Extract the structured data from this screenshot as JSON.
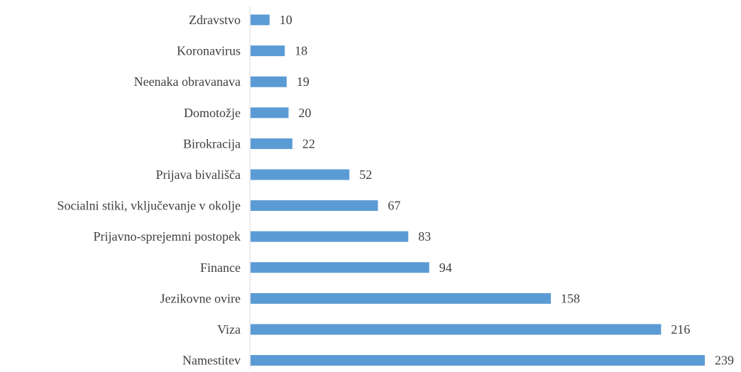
{
  "chart_data": {
    "type": "bar",
    "orientation": "horizontal",
    "title": "",
    "xlabel": "",
    "ylabel": "",
    "xlim": [
      0,
      239
    ],
    "grid": false,
    "legend": "none",
    "bar_color": "#5b9bd5",
    "categories": [
      "Zdravstvo",
      "Koronavirus",
      "Neenaka obravanava",
      "Domotožje",
      "Birokracija",
      "Prijava bivališča",
      "Socialni stiki, vključevanje v okolje",
      "Prijavno-sprejemni postopek",
      "Finance",
      "Jezikovne ovire",
      "Viza",
      "Namestitev"
    ],
    "values": [
      10,
      18,
      19,
      20,
      22,
      52,
      67,
      83,
      94,
      158,
      216,
      239
    ],
    "data_labels": [
      "10",
      "18",
      "19",
      "20",
      "22",
      "52",
      "67",
      "83",
      "94",
      "158",
      "216",
      "239"
    ]
  }
}
